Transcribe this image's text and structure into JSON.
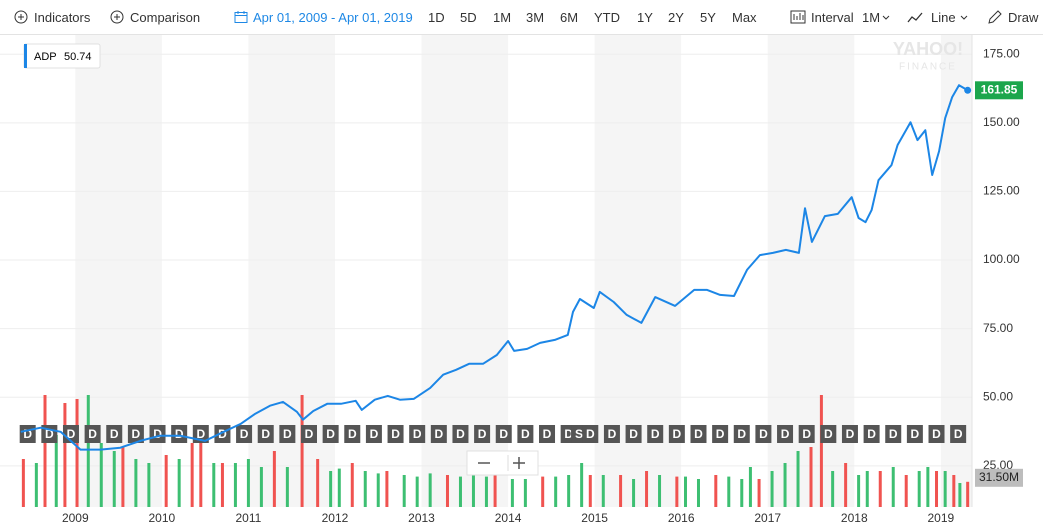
{
  "toolbar": {
    "indicators": "Indicators",
    "comparison": "Comparison",
    "date_range": "Apr 01, 2009 - Apr 01, 2019",
    "ranges": [
      "1D",
      "5D",
      "1M",
      "3M",
      "6M",
      "YTD",
      "1Y",
      "2Y",
      "5Y",
      "Max"
    ],
    "interval_label": "Interval",
    "interval": "1M",
    "chart_style": "Line",
    "draw": "Draw"
  },
  "watermark": [
    "YAHOO!",
    "FINANCE"
  ],
  "chart_data": {
    "type": "line",
    "series": [
      {
        "name": "ADP",
        "color": "#1c86e6",
        "x": [
          2008.37,
          2008.6,
          2008.83,
          2009.06,
          2009.29,
          2009.52,
          2009.75,
          2009.98,
          2010.21,
          2010.5,
          2010.67,
          2010.91,
          2011.08,
          2011.25,
          2011.4,
          2011.56,
          2011.63,
          2011.75,
          2011.91,
          2012.07,
          2012.24,
          2012.31,
          2012.46,
          2012.61,
          2012.75,
          2012.91,
          2013.1,
          2013.25,
          2013.4,
          2013.55,
          2013.71,
          2013.87,
          2014.0,
          2014.07,
          2014.22,
          2014.37,
          2014.54,
          2014.69,
          2014.75,
          2014.83,
          2014.99,
          2015.06,
          2015.22,
          2015.37,
          2015.54,
          2015.7,
          2015.93,
          2016.15,
          2016.3,
          2016.45,
          2016.61,
          2016.76,
          2016.91,
          2017.06,
          2017.21,
          2017.36,
          2017.43,
          2017.51,
          2017.66,
          2017.81,
          2017.97,
          2018.05,
          2018.13,
          2018.2,
          2018.28,
          2018.43,
          2018.5,
          2018.65,
          2018.73,
          2018.82,
          2018.9,
          2018.98,
          2019.05,
          2019.13,
          2019.21,
          2019.31
        ],
        "values": [
          37.4,
          38.9,
          37.4,
          30.9,
          30.9,
          31.6,
          34.1,
          36.0,
          36.0,
          34.1,
          36.7,
          40.3,
          44.0,
          46.9,
          48.3,
          44.7,
          41.8,
          45.0,
          47.6,
          47.6,
          48.7,
          45.4,
          49.1,
          50.5,
          49.1,
          49.4,
          53.4,
          58.2,
          60.0,
          62.2,
          62.2,
          65.4,
          70.5,
          66.9,
          67.6,
          69.8,
          70.9,
          72.7,
          81.1,
          85.8,
          82.5,
          88.4,
          84.7,
          80.0,
          77.1,
          86.5,
          83.3,
          89.1,
          89.1,
          87.3,
          86.9,
          96.4,
          101.8,
          102.6,
          103.7,
          102.6,
          118.9,
          106.6,
          116.0,
          116.8,
          122.9,
          115.3,
          113.8,
          118.2,
          129.1,
          134.6,
          141.9,
          150.2,
          143.7,
          147.3,
          131.0,
          139.7,
          151.7,
          159.3,
          163.7,
          161.85
        ]
      }
    ],
    "readout": 50.74,
    "xlim": [
      2008.13,
      2019.36
    ],
    "xticks": [
      2009,
      2010,
      2011,
      2012,
      2013,
      2014,
      2015,
      2016,
      2017,
      2018,
      2019
    ],
    "ylim": [
      10,
      182
    ],
    "yticks": [
      {
        "value": 25,
        "label": "25.00"
      },
      {
        "value": 50,
        "label": "50.00"
      },
      {
        "value": 75,
        "label": "75.00"
      },
      {
        "value": 100,
        "label": "100.00"
      },
      {
        "value": 125,
        "label": "125.00"
      },
      {
        "value": 150,
        "label": "150.00"
      },
      {
        "value": 175,
        "label": "175.00"
      }
    ],
    "grid": true,
    "volume": {
      "ylim": [
        0,
        145
      ],
      "readout": "31.50M",
      "series": [
        {
          "color": "#3dbf72",
          "x": [
            2008.55,
            2008.78,
            2009.15,
            2009.3,
            2009.45,
            2009.7,
            2009.85,
            2010.2,
            2010.6,
            2010.85,
            2011.0,
            2011.15,
            2011.45,
            2011.95,
            2012.05,
            2012.35,
            2012.5,
            2012.8,
            2012.95,
            2013.1,
            2013.45,
            2013.6,
            2013.75,
            2014.05,
            2014.2,
            2014.55,
            2014.7,
            2014.85,
            2015.1,
            2015.45,
            2015.75,
            2016.05,
            2016.2,
            2016.55,
            2016.7,
            2016.8,
            2017.05,
            2017.2,
            2017.35,
            2017.75,
            2018.05,
            2018.15,
            2018.45,
            2018.75,
            2018.85,
            2019.05,
            2019.22
          ],
          "values": [
            55,
            90,
            140,
            80,
            70,
            60,
            55,
            60,
            55,
            55,
            60,
            50,
            50,
            45,
            48,
            45,
            42,
            40,
            38,
            42,
            38,
            40,
            38,
            35,
            35,
            38,
            40,
            55,
            40,
            35,
            40,
            38,
            35,
            38,
            35,
            50,
            45,
            55,
            70,
            45,
            40,
            45,
            50,
            45,
            50,
            45,
            30
          ]
        },
        {
          "color": "#f05350",
          "x": [
            2008.4,
            2008.65,
            2008.88,
            2009.02,
            2009.55,
            2010.05,
            2010.35,
            2010.45,
            2010.7,
            2011.3,
            2011.62,
            2011.8,
            2012.2,
            2012.6,
            2013.3,
            2013.85,
            2014.4,
            2014.95,
            2015.3,
            2015.6,
            2015.95,
            2016.4,
            2016.9,
            2017.5,
            2017.62,
            2017.9,
            2018.3,
            2018.6,
            2018.95,
            2019.15,
            2019.31
          ],
          "values": [
            60,
            140,
            130,
            135,
            75,
            65,
            80,
            90,
            55,
            70,
            140,
            60,
            55,
            45,
            40,
            45,
            38,
            40,
            40,
            45,
            38,
            40,
            35,
            75,
            140,
            55,
            45,
            40,
            45,
            40,
            31.5
          ]
        }
      ]
    },
    "events": {
      "x": [
        2008.45,
        2008.7,
        2008.95,
        2009.2,
        2009.45,
        2009.7,
        2009.95,
        2010.2,
        2010.45,
        2010.7,
        2010.95,
        2011.2,
        2011.45,
        2011.7,
        2011.95,
        2012.2,
        2012.45,
        2012.7,
        2012.95,
        2013.2,
        2013.45,
        2013.7,
        2013.95,
        2014.2,
        2014.45,
        2014.7,
        2014.82,
        2014.95,
        2015.2,
        2015.45,
        2015.7,
        2015.95,
        2016.2,
        2016.45,
        2016.7,
        2016.95,
        2017.2,
        2017.45,
        2017.7,
        2017.95,
        2018.2,
        2018.45,
        2018.7,
        2018.95,
        2019.2
      ],
      "labels": [
        "D",
        "D",
        "D",
        "D",
        "D",
        "D",
        "D",
        "D",
        "D",
        "D",
        "D",
        "D",
        "D",
        "D",
        "D",
        "D",
        "D",
        "D",
        "D",
        "D",
        "D",
        "D",
        "D",
        "D",
        "D",
        "D",
        "S",
        "D",
        "D",
        "D",
        "D",
        "D",
        "D",
        "D",
        "D",
        "D",
        "D",
        "D",
        "D",
        "D",
        "D",
        "D",
        "D",
        "D",
        "D"
      ]
    }
  }
}
